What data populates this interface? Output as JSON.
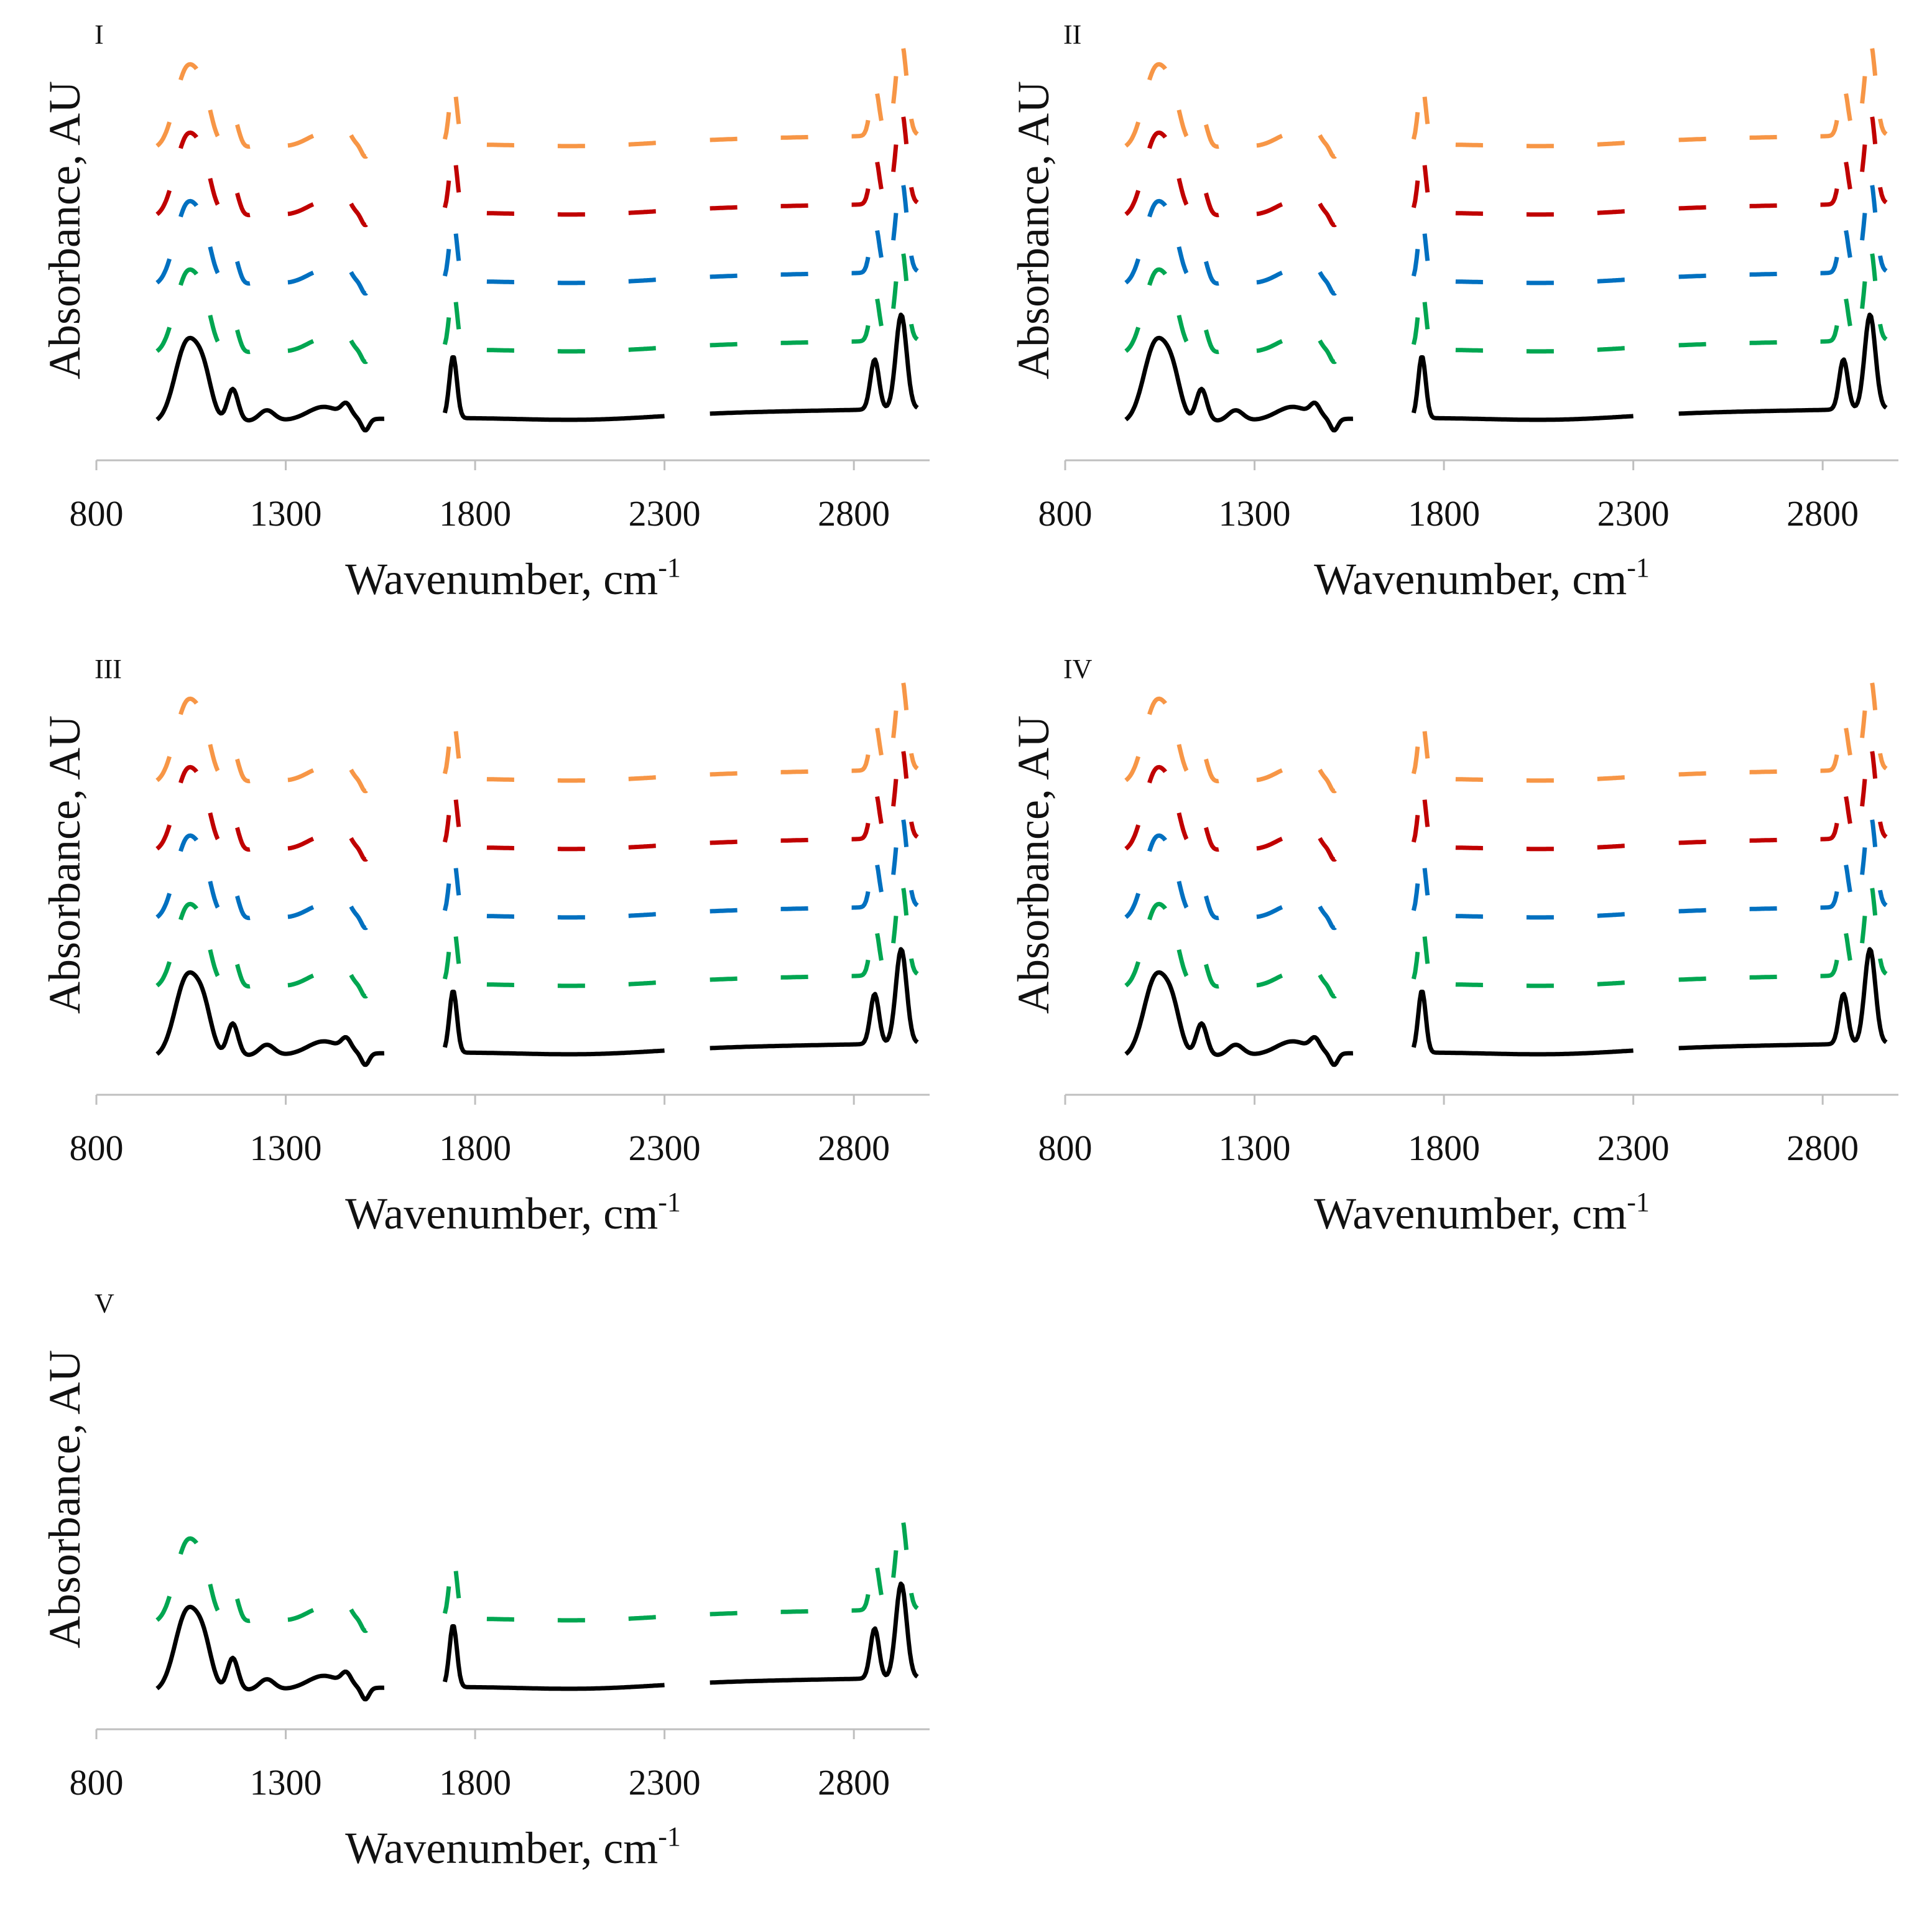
{
  "figure": {
    "panel_labels": [
      "I",
      "II",
      "III",
      "IV",
      "V"
    ],
    "x_axis_title": "Wavenumber, cm",
    "x_axis_title_sup": "-1",
    "y_axis_title": "Absorbance, AU",
    "x_ticks": [
      "800",
      "1300",
      "1800",
      "2300",
      "2800"
    ]
  },
  "colors": {
    "black": "#000000",
    "green": "#00a651",
    "blue": "#0070c0",
    "red": "#c00000",
    "orange": "#f79646",
    "axis": "#bfbfbf"
  },
  "chart_data": [
    {
      "type": "line",
      "panel": "I",
      "xlabel": "Wavenumber, cm-1",
      "ylabel": "Absorbance, AU",
      "xlim": [
        800,
        3000
      ],
      "x_ticks": [
        800,
        1300,
        1800,
        2300,
        2800
      ],
      "y_ticks": [],
      "grid": false,
      "series": [
        {
          "color": "black",
          "dash": "solid",
          "offset": 0
        },
        {
          "color": "green",
          "dash": "dashed",
          "offset": 1
        },
        {
          "color": "blue",
          "dash": "dashed",
          "offset": 2
        },
        {
          "color": "red",
          "dash": "dashed",
          "offset": 3
        },
        {
          "color": "orange",
          "dash": "dashed",
          "offset": 4
        }
      ]
    },
    {
      "type": "line",
      "panel": "II",
      "xlabel": "Wavenumber, cm-1",
      "ylabel": "Absorbance, AU",
      "xlim": [
        800,
        3000
      ],
      "x_ticks": [
        800,
        1300,
        1800,
        2300,
        2800
      ],
      "y_ticks": [],
      "grid": false,
      "series": [
        {
          "color": "black",
          "dash": "solid",
          "offset": 0
        },
        {
          "color": "green",
          "dash": "dashed",
          "offset": 1
        },
        {
          "color": "blue",
          "dash": "dashed",
          "offset": 2
        },
        {
          "color": "red",
          "dash": "dashed",
          "offset": 3
        },
        {
          "color": "orange",
          "dash": "dashed",
          "offset": 4
        }
      ]
    },
    {
      "type": "line",
      "panel": "III",
      "xlabel": "Wavenumber, cm-1",
      "ylabel": "Absorbance, AU",
      "xlim": [
        800,
        3000
      ],
      "x_ticks": [
        800,
        1300,
        1800,
        2300,
        2800
      ],
      "y_ticks": [],
      "grid": false,
      "series": [
        {
          "color": "black",
          "dash": "solid",
          "offset": 0
        },
        {
          "color": "green",
          "dash": "dashed",
          "offset": 1
        },
        {
          "color": "blue",
          "dash": "dashed",
          "offset": 2
        },
        {
          "color": "red",
          "dash": "dashed",
          "offset": 3
        },
        {
          "color": "orange",
          "dash": "dashed",
          "offset": 4
        }
      ]
    },
    {
      "type": "line",
      "panel": "IV",
      "xlabel": "Wavenumber, cm-1",
      "ylabel": "Absorbance, AU",
      "xlim": [
        800,
        3000
      ],
      "x_ticks": [
        800,
        1300,
        1800,
        2300,
        2800
      ],
      "y_ticks": [],
      "grid": false,
      "series": [
        {
          "color": "black",
          "dash": "solid",
          "offset": 0
        },
        {
          "color": "green",
          "dash": "dashed",
          "offset": 1
        },
        {
          "color": "blue",
          "dash": "dashed",
          "offset": 2
        },
        {
          "color": "red",
          "dash": "dashed",
          "offset": 3
        },
        {
          "color": "orange",
          "dash": "dashed",
          "offset": 4
        }
      ]
    },
    {
      "type": "line",
      "panel": "V",
      "xlabel": "Wavenumber, cm-1",
      "ylabel": "Absorbance, AU",
      "xlim": [
        800,
        3000
      ],
      "x_ticks": [
        800,
        1300,
        1800,
        2300,
        2800
      ],
      "y_ticks": [],
      "grid": false,
      "series": [
        {
          "color": "black",
          "dash": "solid",
          "offset": 0
        },
        {
          "color": "green",
          "dash": "dashed",
          "offset": 1
        }
      ]
    }
  ]
}
